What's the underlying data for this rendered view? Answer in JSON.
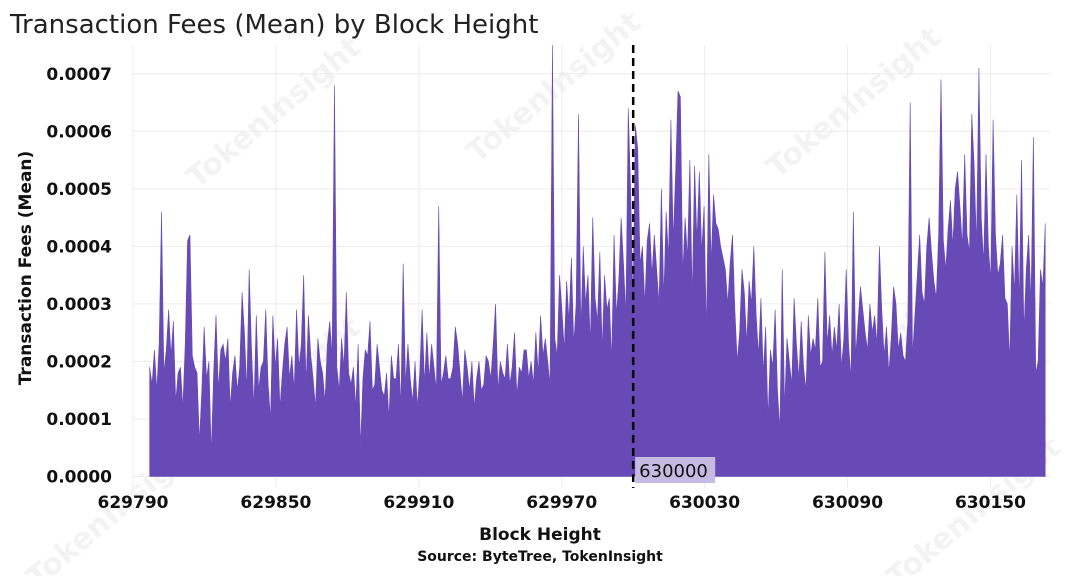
{
  "chart_data": {
    "type": "area",
    "title": "Transaction Fees (Mean) by Block Height",
    "xlabel": "Block Height",
    "ylabel": "Transaction Fees (Mean)",
    "source": "Source: ByteTree, TokenInsight",
    "watermark": "TokenInsight",
    "xlim": [
      629790,
      630175
    ],
    "ylim": [
      -2e-05,
      0.00075
    ],
    "x_ticks": [
      629790,
      629850,
      629910,
      629970,
      630030,
      630090,
      630150
    ],
    "y_ticks": [
      {
        "value": 0.0,
        "label": "0.0000"
      },
      {
        "value": 0.0001,
        "label": "0.0001"
      },
      {
        "value": 0.0002,
        "label": "0.0002"
      },
      {
        "value": 0.0003,
        "label": "0.0003"
      },
      {
        "value": 0.0004,
        "label": "0.0004"
      },
      {
        "value": 0.0005,
        "label": "0.0005"
      },
      {
        "value": 0.0006,
        "label": "0.0006"
      },
      {
        "value": 0.0007,
        "label": "0.0007"
      }
    ],
    "grid": true,
    "fill_color": "#674ab5",
    "annotation": {
      "x": 630000,
      "label": "630000",
      "line_style": "dashed",
      "line_color": "#000000",
      "label_bg": "#c6b9e2"
    },
    "series": [
      {
        "x_start": 629797,
        "x_end": 630173,
        "values": [
          0.00019,
          0.00016,
          0.00022,
          0.00015,
          0.00023,
          0.00046,
          0.00018,
          0.00022,
          0.00029,
          0.00021,
          0.00027,
          0.00013,
          0.00018,
          0.00019,
          0.00012,
          0.00023,
          0.00041,
          0.00042,
          0.00021,
          0.00019,
          0.00018,
          6e-05,
          0.00015,
          0.00026,
          0.00017,
          0.0002,
          4e-05,
          0.00018,
          0.00028,
          0.00015,
          0.00022,
          0.00023,
          0.0002,
          0.00024,
          0.00012,
          0.00018,
          0.00021,
          0.00015,
          0.00019,
          0.00032,
          0.00025,
          0.00015,
          0.00036,
          0.00022,
          0.00012,
          0.00028,
          0.00015,
          0.00019,
          0.0002,
          0.00029,
          0.00016,
          0.0001,
          0.00028,
          0.00019,
          0.00024,
          0.00012,
          0.00018,
          0.00023,
          0.00026,
          0.00017,
          0.00021,
          0.00015,
          0.00029,
          0.00019,
          0.00023,
          0.00035,
          0.00016,
          0.00028,
          0.00021,
          0.00017,
          0.00012,
          0.00024,
          0.0002,
          0.00018,
          0.00013,
          0.00023,
          0.00027,
          0.00021,
          0.00068,
          0.00019,
          0.00015,
          0.00024,
          0.00019,
          0.00032,
          0.00018,
          0.00016,
          0.00019,
          0.00012,
          0.00023,
          5e-05,
          0.00017,
          0.00022,
          0.00021,
          0.00027,
          0.00015,
          0.00016,
          0.00023,
          0.00019,
          0.00015,
          0.00014,
          0.00018,
          0.0001,
          0.00021,
          0.00017,
          0.00017,
          0.00023,
          0.00012,
          0.00037,
          0.00016,
          0.00023,
          0.00017,
          0.00013,
          0.0002,
          0.00012,
          0.00018,
          0.00029,
          0.00016,
          0.00025,
          0.00017,
          0.00023,
          0.00019,
          0.00015,
          0.00047,
          0.00016,
          0.00018,
          0.00021,
          0.00017,
          0.00017,
          0.00019,
          0.00026,
          0.00023,
          0.00018,
          0.00013,
          0.00022,
          0.00019,
          0.00015,
          0.0002,
          0.00012,
          0.00017,
          0.0002,
          0.00015,
          0.00016,
          0.00021,
          0.0002,
          0.00017,
          0.00023,
          0.0003,
          0.00015,
          0.0002,
          0.00018,
          0.00017,
          0.00023,
          0.00016,
          0.00019,
          0.00025,
          0.00014,
          0.00019,
          0.00018,
          0.00022,
          0.00022,
          0.00017,
          0.0002,
          0.00016,
          0.00025,
          0.00018,
          0.00028,
          0.00021,
          0.00024,
          0.0002,
          0.00016,
          0.00075,
          0.00024,
          0.00021,
          0.00035,
          0.00029,
          0.00022,
          0.00034,
          0.00027,
          0.00038,
          0.00023,
          0.0003,
          0.00063,
          0.00025,
          0.0004,
          0.0003,
          0.00035,
          0.00023,
          0.00045,
          0.00031,
          0.00027,
          0.00039,
          0.00022,
          0.00035,
          0.00029,
          0.00031,
          0.0002,
          0.00042,
          0.00028,
          0.00034,
          0.00045,
          0.00037,
          0.00028,
          0.00064,
          0.0005,
          0.0003,
          0.00061,
          0.00057,
          0.00037,
          0.0004,
          0.0003,
          0.00041,
          0.00044,
          0.00035,
          0.00042,
          0.00036,
          0.0003,
          0.0005,
          0.00031,
          0.00046,
          0.00038,
          0.00062,
          0.00041,
          0.00053,
          0.00067,
          0.00066,
          0.00035,
          0.00045,
          0.00038,
          0.00055,
          0.00031,
          0.00054,
          0.00041,
          0.00053,
          0.00039,
          0.00047,
          0.00025,
          0.00056,
          0.00037,
          0.00049,
          0.00044,
          0.00043,
          0.0004,
          0.00038,
          0.00036,
          0.0003,
          0.00037,
          0.00042,
          0.00029,
          0.0002,
          0.00025,
          0.00036,
          0.00032,
          0.00023,
          0.00034,
          0.0003,
          0.0004,
          0.00028,
          0.00021,
          0.00031,
          0.00018,
          0.00026,
          0.0001,
          0.00022,
          0.00019,
          0.00029,
          0.00015,
          8e-05,
          0.00036,
          0.00012,
          0.00024,
          0.0002,
          0.00016,
          0.00031,
          0.00023,
          0.00017,
          0.00027,
          0.00019,
          0.00015,
          0.00028,
          0.00021,
          0.00024,
          0.00022,
          0.00031,
          0.00019,
          0.0002,
          0.00039,
          0.00023,
          0.00028,
          0.00021,
          0.00026,
          0.00022,
          0.0003,
          0.00019,
          0.00024,
          0.00036,
          0.00023,
          0.00017,
          0.00046,
          0.00021,
          0.00027,
          0.00033,
          0.00029,
          0.00025,
          0.00022,
          0.0003,
          0.00025,
          0.00028,
          0.00023,
          0.0004,
          0.00029,
          0.00021,
          0.00026,
          0.00018,
          0.00024,
          0.00033,
          0.0003,
          0.00022,
          0.00025,
          0.00021,
          0.0002,
          0.00027,
          0.00065,
          0.00021,
          0.00028,
          0.00035,
          0.00042,
          0.00032,
          0.0003,
          0.0004,
          0.00045,
          0.00039,
          0.00034,
          0.00031,
          0.00042,
          0.00069,
          0.00041,
          0.00036,
          0.00043,
          0.00048,
          0.0004,
          0.0005,
          0.00053,
          0.00047,
          0.0004,
          0.00056,
          0.00042,
          0.00039,
          0.00063,
          0.00054,
          0.0004,
          0.00071,
          0.00045,
          0.00037,
          0.00056,
          0.0004,
          0.00034,
          0.00062,
          0.00042,
          0.00035,
          0.00037,
          0.00042,
          0.00031,
          0.0003,
          0.0002,
          0.0004,
          0.00032,
          0.00049,
          0.0003,
          0.00055,
          0.00025,
          0.00036,
          0.00042,
          0.0003,
          0.00059,
          0.00018,
          0.0002,
          0.00036,
          0.00033,
          0.00044
        ]
      }
    ]
  }
}
